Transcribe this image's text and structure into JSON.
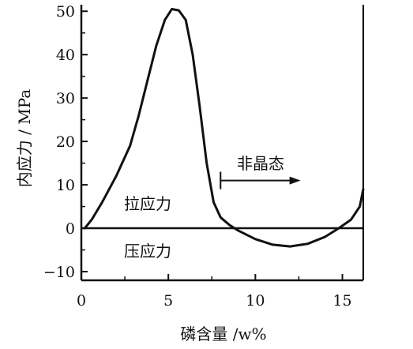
{
  "chart_data": {
    "type": "line",
    "xlabel": "磷含量 /w%",
    "ylabel": "内应力 / MPa",
    "xlim": [
      0,
      16.2
    ],
    "ylim": [
      -12,
      51.5
    ],
    "x_ticks": [
      0,
      5,
      10,
      15
    ],
    "x_tick_labels": [
      "0",
      "5",
      "10",
      "15"
    ],
    "y_ticks": [
      -10,
      0,
      10,
      20,
      30,
      40,
      50
    ],
    "y_tick_labels": [
      "−10",
      "0",
      "10",
      "20",
      "30",
      "40",
      "50"
    ],
    "grid": false,
    "legend": "none",
    "series": [
      {
        "points": [
          [
            0.2,
            0
          ],
          [
            0.6,
            2
          ],
          [
            1.2,
            6
          ],
          [
            2.0,
            12
          ],
          [
            2.8,
            19
          ],
          [
            3.3,
            26
          ],
          [
            3.8,
            34
          ],
          [
            4.3,
            42
          ],
          [
            4.8,
            48
          ],
          [
            5.2,
            50.5
          ],
          [
            5.6,
            50.2
          ],
          [
            6.0,
            48
          ],
          [
            6.4,
            40
          ],
          [
            6.8,
            28
          ],
          [
            7.2,
            15
          ],
          [
            7.6,
            6
          ],
          [
            8.0,
            2.5
          ],
          [
            8.5,
            0.8
          ],
          [
            9.0,
            -0.5
          ],
          [
            10.0,
            -2.5
          ],
          [
            11.0,
            -3.8
          ],
          [
            12.0,
            -4.2
          ],
          [
            13.0,
            -3.6
          ],
          [
            14.0,
            -2.0
          ],
          [
            14.8,
            0
          ],
          [
            15.5,
            2
          ],
          [
            16.0,
            5
          ],
          [
            16.2,
            9
          ]
        ]
      }
    ],
    "annotations": {
      "amorphous_label": "非晶态",
      "amorphous_start_x": 8.0,
      "amorphous_arrow_y": 11,
      "amorphous_arrow_end_x": 12.6,
      "tensile_label": "拉应力",
      "compressive_label": "压应力"
    }
  }
}
